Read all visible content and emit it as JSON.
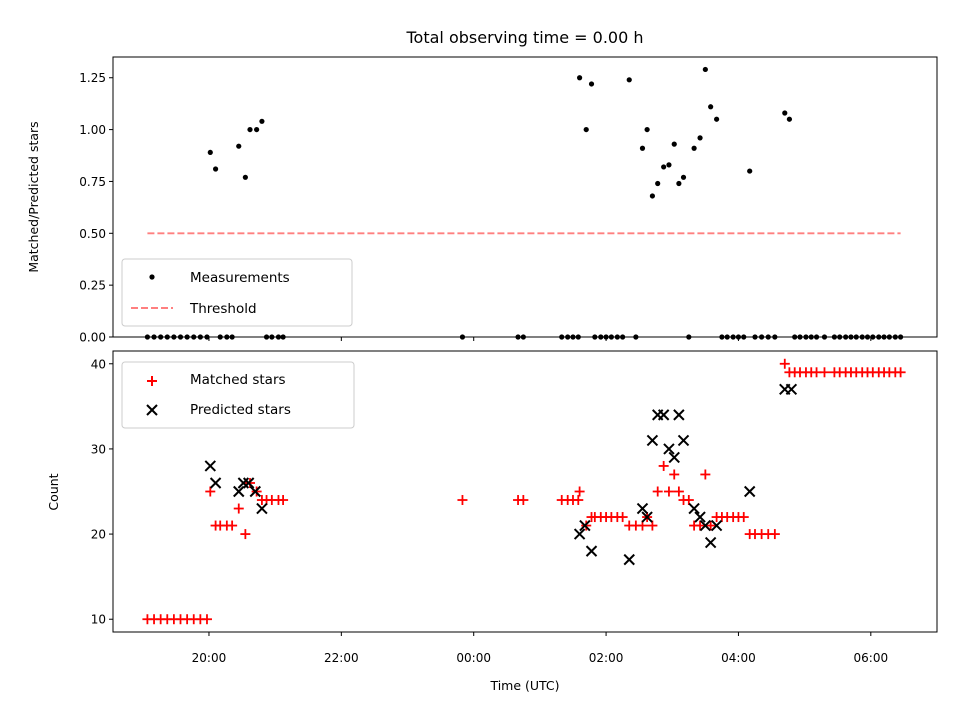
{
  "chart_data": [
    {
      "type": "scatter",
      "title": "Total observing time = 0.00 h",
      "xlabel": "",
      "ylabel": "Matched/Predicted stars",
      "xlim_hours": [
        18.55,
        31.0
      ],
      "ylim": [
        0,
        1.35
      ],
      "yticks": [
        "0.00",
        "0.25",
        "0.50",
        "0.75",
        "1.00",
        "1.25"
      ],
      "grid": false,
      "legend_position": "lower-left",
      "legend": [
        "Measurements",
        "Threshold"
      ],
      "series": [
        {
          "name": "Measurements",
          "marker": "dot",
          "color": "#000000",
          "points": [
            [
              19.07,
              0
            ],
            [
              19.17,
              0
            ],
            [
              19.27,
              0
            ],
            [
              19.37,
              0
            ],
            [
              19.47,
              0
            ],
            [
              19.57,
              0
            ],
            [
              19.67,
              0
            ],
            [
              19.77,
              0
            ],
            [
              19.87,
              0
            ],
            [
              19.97,
              0
            ],
            [
              20.02,
              0.89
            ],
            [
              20.1,
              0.81
            ],
            [
              20.17,
              0
            ],
            [
              20.27,
              0
            ],
            [
              20.35,
              0
            ],
            [
              20.45,
              0.92
            ],
            [
              20.55,
              0.77
            ],
            [
              20.62,
              1.0
            ],
            [
              20.72,
              1.0
            ],
            [
              20.8,
              1.04
            ],
            [
              20.87,
              0
            ],
            [
              20.95,
              0
            ],
            [
              21.05,
              0
            ],
            [
              21.12,
              0
            ],
            [
              23.83,
              0
            ],
            [
              24.67,
              0
            ],
            [
              24.75,
              0
            ],
            [
              25.33,
              0
            ],
            [
              25.42,
              0
            ],
            [
              25.5,
              0
            ],
            [
              25.58,
              0
            ],
            [
              25.6,
              1.25
            ],
            [
              25.7,
              1.0
            ],
            [
              25.78,
              1.22
            ],
            [
              25.83,
              0
            ],
            [
              25.92,
              0
            ],
            [
              26.0,
              0
            ],
            [
              26.08,
              0
            ],
            [
              26.17,
              0
            ],
            [
              26.25,
              0
            ],
            [
              26.35,
              1.24
            ],
            [
              26.45,
              0
            ],
            [
              26.55,
              0.91
            ],
            [
              26.62,
              1.0
            ],
            [
              26.7,
              0.68
            ],
            [
              26.78,
              0.74
            ],
            [
              26.87,
              0.82
            ],
            [
              26.95,
              0.83
            ],
            [
              27.03,
              0.93
            ],
            [
              27.1,
              0.74
            ],
            [
              27.17,
              0.77
            ],
            [
              27.25,
              0
            ],
            [
              27.33,
              0.91
            ],
            [
              27.42,
              0.96
            ],
            [
              27.5,
              1.29
            ],
            [
              27.58,
              1.11
            ],
            [
              27.67,
              1.05
            ],
            [
              27.75,
              0
            ],
            [
              27.83,
              0
            ],
            [
              27.92,
              0
            ],
            [
              28.0,
              0
            ],
            [
              28.08,
              0
            ],
            [
              28.17,
              0.8
            ],
            [
              28.25,
              0
            ],
            [
              28.35,
              0
            ],
            [
              28.45,
              0
            ],
            [
              28.55,
              0
            ],
            [
              28.7,
              1.08
            ],
            [
              28.77,
              1.05
            ],
            [
              28.85,
              0
            ],
            [
              28.93,
              0
            ],
            [
              29.02,
              0
            ],
            [
              29.1,
              0
            ],
            [
              29.18,
              0
            ],
            [
              29.3,
              0
            ],
            [
              29.45,
              0
            ],
            [
              29.53,
              0
            ],
            [
              29.62,
              0
            ],
            [
              29.7,
              0
            ],
            [
              29.78,
              0
            ],
            [
              29.87,
              0
            ],
            [
              29.95,
              0
            ],
            [
              30.03,
              0
            ],
            [
              30.12,
              0
            ],
            [
              30.2,
              0
            ],
            [
              30.28,
              0
            ],
            [
              30.37,
              0
            ],
            [
              30.45,
              0
            ]
          ]
        },
        {
          "name": "Threshold",
          "style": "dashed",
          "color": "#ff7f7f",
          "points": [
            [
              19.07,
              0.5
            ],
            [
              30.45,
              0.5
            ]
          ]
        }
      ]
    },
    {
      "type": "scatter",
      "title": "",
      "xlabel": "Time (UTC)",
      "ylabel": "Count",
      "xlim_hours": [
        18.55,
        31.0
      ],
      "ylim": [
        8.5,
        41.5
      ],
      "yticks": [
        "10",
        "20",
        "30",
        "40"
      ],
      "xticks": [
        "20:00",
        "22:00",
        "00:00",
        "02:00",
        "04:00",
        "06:00"
      ],
      "grid": false,
      "legend_position": "upper-left",
      "legend": [
        "Matched stars",
        "Predicted stars"
      ],
      "series": [
        {
          "name": "Matched stars",
          "marker": "plus",
          "color": "#ff0000",
          "points": [
            [
              19.07,
              10
            ],
            [
              19.17,
              10
            ],
            [
              19.27,
              10
            ],
            [
              19.37,
              10
            ],
            [
              19.47,
              10
            ],
            [
              19.57,
              10
            ],
            [
              19.67,
              10
            ],
            [
              19.77,
              10
            ],
            [
              19.87,
              10
            ],
            [
              19.97,
              10
            ],
            [
              20.02,
              25
            ],
            [
              20.1,
              21
            ],
            [
              20.17,
              21
            ],
            [
              20.27,
              21
            ],
            [
              20.35,
              21
            ],
            [
              20.45,
              23
            ],
            [
              20.55,
              20
            ],
            [
              20.62,
              26
            ],
            [
              20.72,
              25
            ],
            [
              20.8,
              24
            ],
            [
              20.87,
              24
            ],
            [
              20.95,
              24
            ],
            [
              21.05,
              24
            ],
            [
              21.12,
              24
            ],
            [
              23.83,
              24
            ],
            [
              24.67,
              24
            ],
            [
              24.75,
              24
            ],
            [
              25.33,
              24
            ],
            [
              25.42,
              24
            ],
            [
              25.5,
              24
            ],
            [
              25.58,
              24
            ],
            [
              25.6,
              25
            ],
            [
              25.7,
              21
            ],
            [
              25.78,
              22
            ],
            [
              25.83,
              22
            ],
            [
              25.92,
              22
            ],
            [
              26.0,
              22
            ],
            [
              26.08,
              22
            ],
            [
              26.17,
              22
            ],
            [
              26.25,
              22
            ],
            [
              26.35,
              21
            ],
            [
              26.45,
              21
            ],
            [
              26.55,
              21
            ],
            [
              26.62,
              22
            ],
            [
              26.7,
              21
            ],
            [
              26.78,
              25
            ],
            [
              26.87,
              28
            ],
            [
              26.95,
              25
            ],
            [
              27.03,
              27
            ],
            [
              27.1,
              25
            ],
            [
              27.17,
              24
            ],
            [
              27.25,
              24
            ],
            [
              27.33,
              21
            ],
            [
              27.42,
              21
            ],
            [
              27.5,
              27
            ],
            [
              27.58,
              21
            ],
            [
              27.67,
              22
            ],
            [
              27.75,
              22
            ],
            [
              27.83,
              22
            ],
            [
              27.92,
              22
            ],
            [
              28.0,
              22
            ],
            [
              28.08,
              22
            ],
            [
              28.17,
              20
            ],
            [
              28.25,
              20
            ],
            [
              28.35,
              20
            ],
            [
              28.45,
              20
            ],
            [
              28.55,
              20
            ],
            [
              28.7,
              40
            ],
            [
              28.77,
              39
            ],
            [
              28.85,
              39
            ],
            [
              28.93,
              39
            ],
            [
              29.02,
              39
            ],
            [
              29.1,
              39
            ],
            [
              29.18,
              39
            ],
            [
              29.3,
              39
            ],
            [
              29.45,
              39
            ],
            [
              29.53,
              39
            ],
            [
              29.62,
              39
            ],
            [
              29.7,
              39
            ],
            [
              29.78,
              39
            ],
            [
              29.87,
              39
            ],
            [
              29.95,
              39
            ],
            [
              30.03,
              39
            ],
            [
              30.12,
              39
            ],
            [
              30.2,
              39
            ],
            [
              30.28,
              39
            ],
            [
              30.37,
              39
            ],
            [
              30.45,
              39
            ]
          ]
        },
        {
          "name": "Predicted stars",
          "marker": "x",
          "color": "#000000",
          "points": [
            [
              20.02,
              28
            ],
            [
              20.1,
              26
            ],
            [
              20.45,
              25
            ],
            [
              20.52,
              26
            ],
            [
              20.6,
              26
            ],
            [
              20.7,
              25
            ],
            [
              20.8,
              23
            ],
            [
              25.6,
              20
            ],
            [
              25.68,
              21
            ],
            [
              25.78,
              18
            ],
            [
              26.35,
              17
            ],
            [
              26.55,
              23
            ],
            [
              26.62,
              22
            ],
            [
              26.7,
              31
            ],
            [
              26.78,
              34
            ],
            [
              26.87,
              34
            ],
            [
              26.95,
              30
            ],
            [
              27.03,
              29
            ],
            [
              27.1,
              34
            ],
            [
              27.17,
              31
            ],
            [
              27.33,
              23
            ],
            [
              27.42,
              22
            ],
            [
              27.5,
              21
            ],
            [
              27.58,
              19
            ],
            [
              27.67,
              21
            ],
            [
              28.17,
              25
            ],
            [
              28.7,
              37
            ],
            [
              28.8,
              37
            ]
          ]
        }
      ]
    }
  ]
}
